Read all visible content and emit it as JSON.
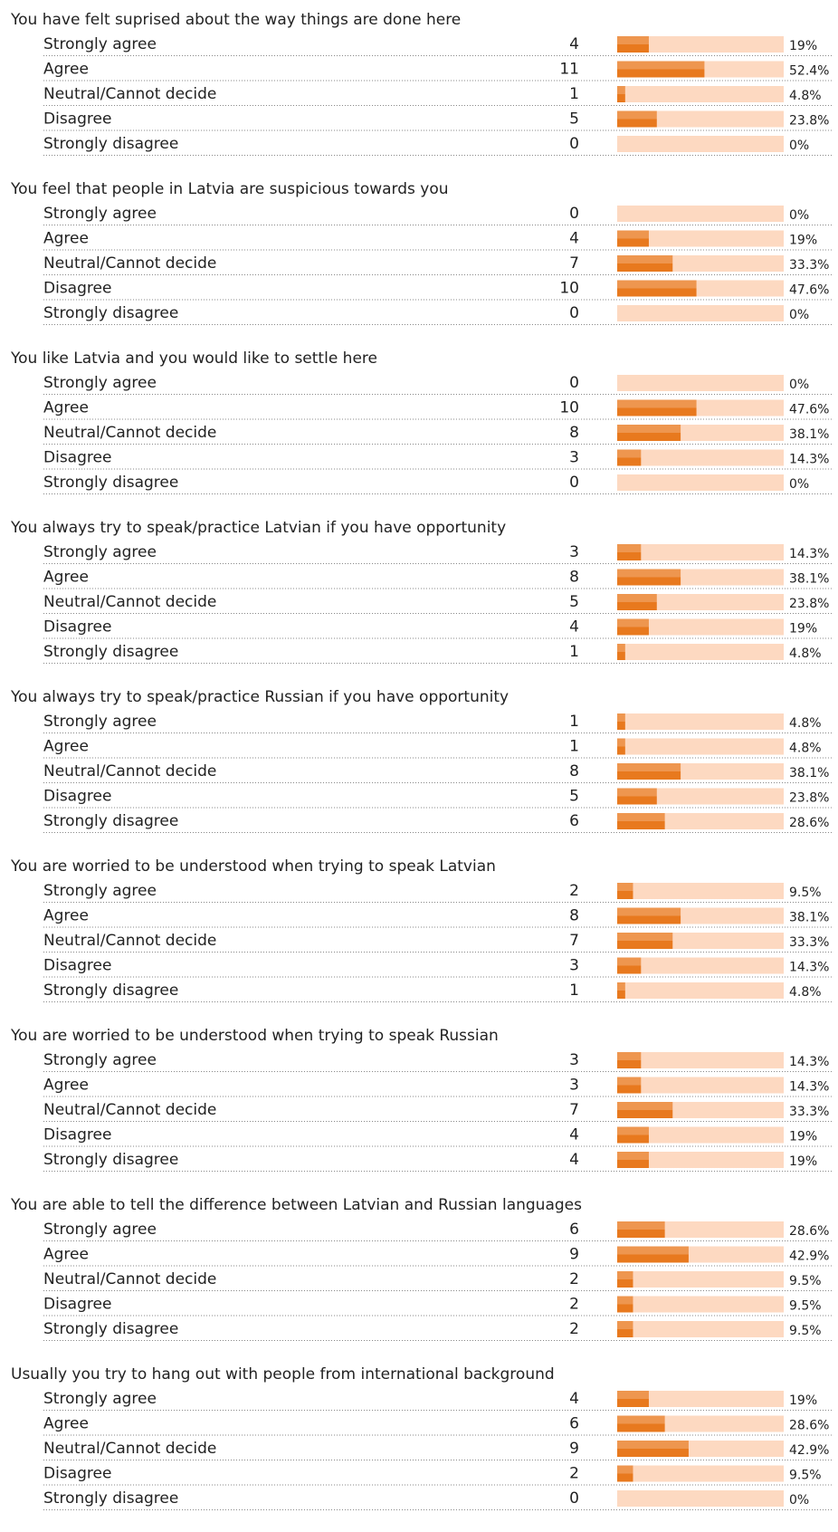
{
  "chart_data": [
    {
      "type": "hbar",
      "title": "You have felt suprised about the way things are done here",
      "categories": [
        "Strongly agree",
        "Agree",
        "Neutral/Cannot decide",
        "Disagree",
        "Strongly disagree"
      ],
      "counts": [
        4,
        11,
        1,
        5,
        0
      ],
      "values": [
        19,
        52.4,
        4.8,
        23.8,
        0
      ],
      "value_labels": [
        "19%",
        "52.4%",
        "4.8%",
        "23.8%",
        "0%"
      ],
      "xlim": [
        0,
        100
      ],
      "color": "#e8791e",
      "track_color": "#fdd9c1"
    },
    {
      "type": "hbar",
      "title": "You feel that people in Latvia are suspicious towards you",
      "categories": [
        "Strongly agree",
        "Agree",
        "Neutral/Cannot decide",
        "Disagree",
        "Strongly disagree"
      ],
      "counts": [
        0,
        4,
        7,
        10,
        0
      ],
      "values": [
        0,
        19,
        33.3,
        47.6,
        0
      ],
      "value_labels": [
        "0%",
        "19%",
        "33.3%",
        "47.6%",
        "0%"
      ],
      "xlim": [
        0,
        100
      ],
      "color": "#e8791e",
      "track_color": "#fdd9c1"
    },
    {
      "type": "hbar",
      "title": "You like Latvia and you would like to settle here",
      "categories": [
        "Strongly agree",
        "Agree",
        "Neutral/Cannot decide",
        "Disagree",
        "Strongly disagree"
      ],
      "counts": [
        0,
        10,
        8,
        3,
        0
      ],
      "values": [
        0,
        47.6,
        38.1,
        14.3,
        0
      ],
      "value_labels": [
        "0%",
        "47.6%",
        "38.1%",
        "14.3%",
        "0%"
      ],
      "xlim": [
        0,
        100
      ],
      "color": "#e8791e",
      "track_color": "#fdd9c1"
    },
    {
      "type": "hbar",
      "title": "You always try to speak/practice Latvian if you have opportunity",
      "categories": [
        "Strongly agree",
        "Agree",
        "Neutral/Cannot decide",
        "Disagree",
        "Strongly disagree"
      ],
      "counts": [
        3,
        8,
        5,
        4,
        1
      ],
      "values": [
        14.3,
        38.1,
        23.8,
        19,
        4.8
      ],
      "value_labels": [
        "14.3%",
        "38.1%",
        "23.8%",
        "19%",
        "4.8%"
      ],
      "xlim": [
        0,
        100
      ],
      "color": "#e8791e",
      "track_color": "#fdd9c1"
    },
    {
      "type": "hbar",
      "title": "You always try to speak/practice Russian if you have opportunity",
      "categories": [
        "Strongly agree",
        "Agree",
        "Neutral/Cannot decide",
        "Disagree",
        "Strongly disagree"
      ],
      "counts": [
        1,
        1,
        8,
        5,
        6
      ],
      "values": [
        4.8,
        4.8,
        38.1,
        23.8,
        28.6
      ],
      "value_labels": [
        "4.8%",
        "4.8%",
        "38.1%",
        "23.8%",
        "28.6%"
      ],
      "xlim": [
        0,
        100
      ],
      "color": "#e8791e",
      "track_color": "#fdd9c1"
    },
    {
      "type": "hbar",
      "title": "You are worried to be understood when trying to speak Latvian",
      "categories": [
        "Strongly agree",
        "Agree",
        "Neutral/Cannot decide",
        "Disagree",
        "Strongly disagree"
      ],
      "counts": [
        2,
        8,
        7,
        3,
        1
      ],
      "values": [
        9.5,
        38.1,
        33.3,
        14.3,
        4.8
      ],
      "value_labels": [
        "9.5%",
        "38.1%",
        "33.3%",
        "14.3%",
        "4.8%"
      ],
      "xlim": [
        0,
        100
      ],
      "color": "#e8791e",
      "track_color": "#fdd9c1"
    },
    {
      "type": "hbar",
      "title": "You are worried to be understood when trying to speak Russian",
      "categories": [
        "Strongly agree",
        "Agree",
        "Neutral/Cannot decide",
        "Disagree",
        "Strongly disagree"
      ],
      "counts": [
        3,
        3,
        7,
        4,
        4
      ],
      "values": [
        14.3,
        14.3,
        33.3,
        19,
        19
      ],
      "value_labels": [
        "14.3%",
        "14.3%",
        "33.3%",
        "19%",
        "19%"
      ],
      "xlim": [
        0,
        100
      ],
      "color": "#e8791e",
      "track_color": "#fdd9c1"
    },
    {
      "type": "hbar",
      "title": "You are able to tell the difference between Latvian and Russian languages",
      "categories": [
        "Strongly agree",
        "Agree",
        "Neutral/Cannot decide",
        "Disagree",
        "Strongly disagree"
      ],
      "counts": [
        6,
        9,
        2,
        2,
        2
      ],
      "values": [
        28.6,
        42.9,
        9.5,
        9.5,
        9.5
      ],
      "value_labels": [
        "28.6%",
        "42.9%",
        "9.5%",
        "9.5%",
        "9.5%"
      ],
      "xlim": [
        0,
        100
      ],
      "color": "#e8791e",
      "track_color": "#fdd9c1"
    },
    {
      "type": "hbar",
      "title": "Usually you try to hang out with people from international background",
      "categories": [
        "Strongly agree",
        "Agree",
        "Neutral/Cannot decide",
        "Disagree",
        "Strongly disagree"
      ],
      "counts": [
        4,
        6,
        9,
        2,
        0
      ],
      "values": [
        19,
        28.6,
        42.9,
        9.5,
        0
      ],
      "value_labels": [
        "19%",
        "28.6%",
        "42.9%",
        "9.5%",
        "0%"
      ],
      "xlim": [
        0,
        100
      ],
      "color": "#e8791e",
      "track_color": "#fdd9c1"
    }
  ]
}
